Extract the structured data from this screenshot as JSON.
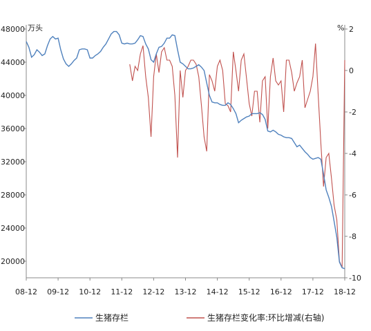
{
  "chart_data": {
    "type": "line",
    "left_axis_unit": "万头",
    "right_axis_unit": "%",
    "grid": false,
    "legend_position": "bottom",
    "x_tick_labels": [
      "08-12",
      "09-12",
      "10-12",
      "11-12",
      "12-12",
      "13-12",
      "14-12",
      "15-12",
      "16-12",
      "17-12",
      "18-12"
    ],
    "left_axis": {
      "ticks": [
        20000,
        24000,
        28000,
        32000,
        36000,
        40000,
        44000,
        48000
      ],
      "ylim": [
        18000,
        48500
      ]
    },
    "right_axis": {
      "ticks": [
        2,
        0,
        -2,
        -4,
        -6,
        -8,
        -10
      ],
      "ylim": [
        -10,
        2.2
      ]
    },
    "colors": {
      "inventory": "#4f81bd",
      "change": "#c0504d"
    },
    "series": [
      {
        "name": "生猪存栏",
        "axis": "left",
        "points": [
          [
            0,
            46500
          ],
          [
            1,
            45800
          ],
          [
            2,
            44600
          ],
          [
            3,
            44900
          ],
          [
            4,
            45500
          ],
          [
            5,
            45200
          ],
          [
            6,
            44800
          ],
          [
            7,
            45000
          ],
          [
            8,
            46000
          ],
          [
            9,
            46800
          ],
          [
            10,
            47100
          ],
          [
            11,
            46800
          ],
          [
            12,
            46900
          ],
          [
            13,
            45500
          ],
          [
            14,
            44400
          ],
          [
            15,
            43800
          ],
          [
            16,
            43500
          ],
          [
            17,
            43800
          ],
          [
            18,
            44200
          ],
          [
            19,
            44500
          ],
          [
            20,
            45500
          ],
          [
            21,
            45600
          ],
          [
            22,
            45600
          ],
          [
            23,
            45500
          ],
          [
            24,
            44500
          ],
          [
            25,
            44500
          ],
          [
            26,
            44800
          ],
          [
            27,
            45000
          ],
          [
            28,
            45300
          ],
          [
            29,
            45800
          ],
          [
            30,
            46200
          ],
          [
            31,
            46800
          ],
          [
            32,
            47400
          ],
          [
            33,
            47700
          ],
          [
            34,
            47700
          ],
          [
            35,
            47300
          ],
          [
            36,
            46300
          ],
          [
            37,
            46200
          ],
          [
            38,
            46300
          ],
          [
            39,
            46200
          ],
          [
            40,
            46200
          ],
          [
            41,
            46300
          ],
          [
            42,
            46700
          ],
          [
            43,
            47200
          ],
          [
            44,
            47100
          ],
          [
            45,
            46200
          ],
          [
            46,
            45600
          ],
          [
            47,
            44300
          ],
          [
            48,
            44000
          ],
          [
            49,
            45000
          ],
          [
            50,
            45800
          ],
          [
            51,
            45900
          ],
          [
            52,
            46300
          ],
          [
            53,
            46900
          ],
          [
            54,
            46900
          ],
          [
            55,
            47300
          ],
          [
            56,
            47200
          ],
          [
            57,
            45500
          ],
          [
            58,
            44000
          ],
          [
            59,
            43800
          ],
          [
            60,
            43500
          ],
          [
            61,
            43200
          ],
          [
            62,
            43200
          ],
          [
            63,
            43300
          ],
          [
            64,
            43500
          ],
          [
            65,
            43700
          ],
          [
            66,
            43400
          ],
          [
            67,
            43000
          ],
          [
            68,
            41500
          ],
          [
            69,
            40000
          ],
          [
            70,
            39200
          ],
          [
            71,
            39100
          ],
          [
            72,
            39100
          ],
          [
            73,
            38900
          ],
          [
            74,
            38800
          ],
          [
            75,
            38800
          ],
          [
            76,
            39100
          ],
          [
            77,
            38900
          ],
          [
            78,
            38400
          ],
          [
            79,
            37800
          ],
          [
            80,
            36700
          ],
          [
            81,
            37000
          ],
          [
            82,
            37200
          ],
          [
            83,
            37400
          ],
          [
            84,
            37500
          ],
          [
            85,
            37800
          ],
          [
            86,
            37800
          ],
          [
            87,
            37800
          ],
          [
            88,
            37900
          ],
          [
            89,
            37700
          ],
          [
            90,
            37100
          ],
          [
            91,
            35700
          ],
          [
            92,
            35600
          ],
          [
            93,
            35800
          ],
          [
            94,
            35600
          ],
          [
            95,
            35300
          ],
          [
            96,
            35200
          ],
          [
            97,
            35000
          ],
          [
            98,
            34900
          ],
          [
            99,
            34900
          ],
          [
            100,
            34800
          ],
          [
            101,
            34300
          ],
          [
            102,
            33800
          ],
          [
            103,
            34000
          ],
          [
            104,
            33600
          ],
          [
            105,
            33200
          ],
          [
            106,
            32900
          ],
          [
            107,
            32500
          ],
          [
            108,
            32300
          ],
          [
            109,
            32400
          ],
          [
            110,
            32500
          ],
          [
            111,
            32300
          ],
          [
            112,
            30500
          ],
          [
            113,
            28600
          ],
          [
            114,
            27700
          ],
          [
            115,
            26600
          ],
          [
            116,
            24800
          ],
          [
            117,
            22900
          ],
          [
            118,
            19900
          ],
          [
            119,
            19200
          ],
          [
            120,
            19100
          ]
        ]
      },
      {
        "name": "生猪存栏变化率:环比增减(右轴)",
        "axis": "right",
        "points": [
          [
            39,
            0.3
          ],
          [
            40,
            -0.5
          ],
          [
            41,
            0.2
          ],
          [
            42,
            0.0
          ],
          [
            43,
            0.8
          ],
          [
            44,
            1.2
          ],
          [
            45,
            -0.3
          ],
          [
            46,
            -1.3
          ],
          [
            47,
            -3.2
          ],
          [
            48,
            -0.3
          ],
          [
            49,
            0.8
          ],
          [
            50,
            -0.1
          ],
          [
            51,
            0.9
          ],
          [
            52,
            1.1
          ],
          [
            53,
            0.5
          ],
          [
            54,
            0.5
          ],
          [
            55,
            0.2
          ],
          [
            56,
            -1.2
          ],
          [
            57,
            -4.2
          ],
          [
            58,
            0.0
          ],
          [
            59,
            -1.3
          ],
          [
            60,
            0.0
          ],
          [
            61,
            0.2
          ],
          [
            62,
            0.5
          ],
          [
            63,
            0.5
          ],
          [
            64,
            0.3
          ],
          [
            65,
            -0.3
          ],
          [
            66,
            -1.7
          ],
          [
            67,
            -3.2
          ],
          [
            68,
            -3.9
          ],
          [
            69,
            -0.2
          ],
          [
            70,
            -0.5
          ],
          [
            71,
            -1.0
          ],
          [
            72,
            0.2
          ],
          [
            73,
            0.5
          ],
          [
            74,
            0.0
          ],
          [
            75,
            -1.6
          ],
          [
            76,
            -1.7
          ],
          [
            77,
            -2.0
          ],
          [
            78,
            0.9
          ],
          [
            79,
            0.0
          ],
          [
            80,
            -1.0
          ],
          [
            81,
            0.5
          ],
          [
            82,
            0.8
          ],
          [
            83,
            -0.4
          ],
          [
            84,
            -1.6
          ],
          [
            85,
            -2.2
          ],
          [
            86,
            -1.0
          ],
          [
            87,
            -1.0
          ],
          [
            88,
            -2.5
          ],
          [
            89,
            -0.5
          ],
          [
            90,
            -0.3
          ],
          [
            91,
            -2.8
          ],
          [
            92,
            -0.3
          ],
          [
            93,
            0.6
          ],
          [
            94,
            -0.5
          ],
          [
            95,
            -0.7
          ],
          [
            96,
            -0.5
          ],
          [
            97,
            -2.0
          ],
          [
            98,
            0.5
          ],
          [
            99,
            0.5
          ],
          [
            100,
            -0.1
          ],
          [
            101,
            -1.0
          ],
          [
            102,
            -0.6
          ],
          [
            103,
            -0.3
          ],
          [
            104,
            0.5
          ],
          [
            105,
            -1.8
          ],
          [
            106,
            -1.4
          ],
          [
            107,
            -1.0
          ],
          [
            108,
            -0.3
          ],
          [
            109,
            1.3
          ],
          [
            110,
            -1.2
          ],
          [
            111,
            -3.5
          ],
          [
            112,
            -5.6
          ],
          [
            113,
            -4.2
          ],
          [
            114,
            -4.0
          ],
          [
            115,
            -5.2
          ],
          [
            116,
            -6.5
          ],
          [
            117,
            -7.2
          ],
          [
            118,
            -9.2
          ],
          [
            119,
            -9.5
          ],
          [
            120,
            0.5
          ]
        ]
      }
    ]
  }
}
